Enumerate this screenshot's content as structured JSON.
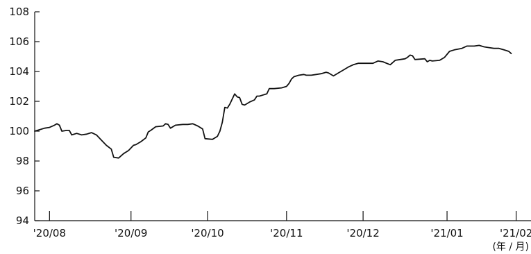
{
  "chart_data": {
    "type": "line",
    "title": "",
    "xlabel": "",
    "ylabel": "",
    "x_unit_label": "(年 / 月)",
    "ylim": [
      94,
      108
    ],
    "yticks": [
      94,
      96,
      98,
      100,
      102,
      104,
      106,
      108
    ],
    "xlim": [
      0,
      201
    ],
    "grid": false,
    "legend": "none",
    "month_ticks": [
      {
        "label": "'20/08",
        "x": 6
      },
      {
        "label": "'20/09",
        "x": 39
      },
      {
        "label": "'20/10",
        "x": 70
      },
      {
        "label": "'20/11",
        "x": 102
      },
      {
        "label": "'20/12",
        "x": 133
      },
      {
        "label": "'21/01",
        "x": 167
      },
      {
        "label": "'21/02",
        "x": 195
      }
    ],
    "separator_ticks": [
      6,
      39,
      70,
      102,
      133,
      167,
      195
    ],
    "series": [
      {
        "name": "",
        "color": "#111111",
        "points": [
          [
            0,
            100.0
          ],
          [
            2,
            100.1
          ],
          [
            4,
            100.2
          ],
          [
            6,
            100.25
          ],
          [
            8,
            100.4
          ],
          [
            9,
            100.5
          ],
          [
            10,
            100.4
          ],
          [
            11,
            100.0
          ],
          [
            13,
            100.05
          ],
          [
            14,
            100.05
          ],
          [
            15,
            99.75
          ],
          [
            17,
            99.85
          ],
          [
            19,
            99.75
          ],
          [
            21,
            99.8
          ],
          [
            23,
            99.9
          ],
          [
            25,
            99.75
          ],
          [
            27,
            99.4
          ],
          [
            29,
            99.05
          ],
          [
            31,
            98.8
          ],
          [
            32,
            98.25
          ],
          [
            34,
            98.2
          ],
          [
            36,
            98.5
          ],
          [
            38,
            98.7
          ],
          [
            40,
            99.05
          ],
          [
            41,
            99.1
          ],
          [
            43,
            99.3
          ],
          [
            45,
            99.55
          ],
          [
            46,
            99.95
          ],
          [
            47,
            100.05
          ],
          [
            49,
            100.3
          ],
          [
            52,
            100.35
          ],
          [
            53,
            100.5
          ],
          [
            54,
            100.45
          ],
          [
            55,
            100.2
          ],
          [
            57,
            100.4
          ],
          [
            60,
            100.45
          ],
          [
            62,
            100.45
          ],
          [
            64,
            100.5
          ],
          [
            66,
            100.35
          ],
          [
            68,
            100.15
          ],
          [
            69,
            99.5
          ],
          [
            72,
            99.45
          ],
          [
            74,
            99.65
          ],
          [
            75,
            100.0
          ],
          [
            76,
            100.6
          ],
          [
            77,
            101.6
          ],
          [
            78,
            101.55
          ],
          [
            79,
            101.8
          ],
          [
            81,
            102.5
          ],
          [
            82,
            102.3
          ],
          [
            83,
            102.25
          ],
          [
            84,
            101.8
          ],
          [
            85,
            101.75
          ],
          [
            87,
            101.95
          ],
          [
            89,
            102.1
          ],
          [
            90,
            102.35
          ],
          [
            91,
            102.35
          ],
          [
            93,
            102.45
          ],
          [
            94,
            102.5
          ],
          [
            95,
            102.85
          ],
          [
            97,
            102.85
          ],
          [
            100,
            102.9
          ],
          [
            102,
            103.0
          ],
          [
            103,
            103.2
          ],
          [
            104,
            103.5
          ],
          [
            105,
            103.65
          ],
          [
            107,
            103.75
          ],
          [
            109,
            103.8
          ],
          [
            110,
            103.75
          ],
          [
            112,
            103.75
          ],
          [
            114,
            103.8
          ],
          [
            116,
            103.85
          ],
          [
            118,
            103.95
          ],
          [
            119,
            103.9
          ],
          [
            121,
            103.7
          ],
          [
            123,
            103.9
          ],
          [
            125,
            104.1
          ],
          [
            127,
            104.3
          ],
          [
            129,
            104.45
          ],
          [
            131,
            104.55
          ],
          [
            134,
            104.55
          ],
          [
            137,
            104.55
          ],
          [
            139,
            104.7
          ],
          [
            141,
            104.65
          ],
          [
            144,
            104.45
          ],
          [
            146,
            104.75
          ],
          [
            148,
            104.8
          ],
          [
            150,
            104.85
          ],
          [
            151,
            104.95
          ],
          [
            152,
            105.1
          ],
          [
            153,
            105.05
          ],
          [
            154,
            104.8
          ],
          [
            158,
            104.85
          ],
          [
            159,
            104.65
          ],
          [
            160,
            104.75
          ],
          [
            161,
            104.7
          ],
          [
            164,
            104.75
          ],
          [
            166,
            104.95
          ],
          [
            168,
            105.35
          ],
          [
            170,
            105.45
          ],
          [
            173,
            105.55
          ],
          [
            175,
            105.7
          ],
          [
            178,
            105.7
          ],
          [
            180,
            105.75
          ],
          [
            182,
            105.65
          ],
          [
            184,
            105.6
          ],
          [
            186,
            105.55
          ],
          [
            188,
            105.55
          ],
          [
            190,
            105.45
          ],
          [
            192,
            105.35
          ],
          [
            193,
            105.2
          ]
        ]
      }
    ]
  }
}
